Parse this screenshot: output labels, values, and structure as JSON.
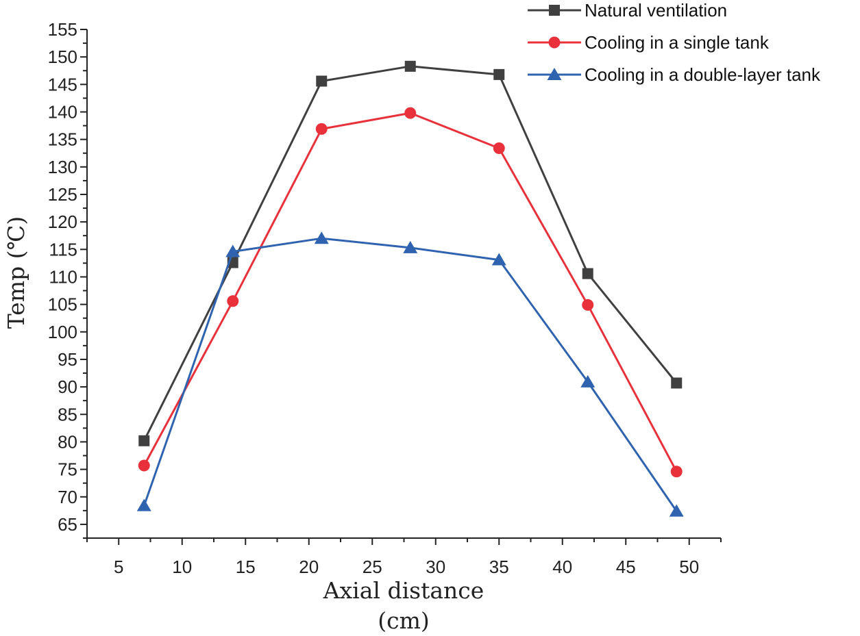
{
  "chart_data": {
    "type": "line",
    "title": "",
    "xlabel": "Axial distance",
    "xlabel_unit": "(cm)",
    "ylabel": "Temp (℃)",
    "xlim": [
      2.5,
      52.5
    ],
    "ylim": [
      62.5,
      155
    ],
    "xticks": [
      5,
      10,
      15,
      20,
      25,
      30,
      35,
      40,
      45,
      50
    ],
    "yticks": [
      65,
      70,
      75,
      80,
      85,
      90,
      95,
      100,
      105,
      110,
      115,
      120,
      125,
      130,
      135,
      140,
      145,
      150,
      155
    ],
    "x": [
      7,
      14,
      21,
      28,
      35,
      42,
      49
    ],
    "grid": false,
    "legend_position": "top-right",
    "series": [
      {
        "name": "Natural ventilation",
        "marker": "square",
        "color": "#404040",
        "values": [
          80.2,
          112.6,
          145.6,
          148.3,
          146.8,
          110.6,
          90.7
        ]
      },
      {
        "name": "Cooling in a single tank",
        "marker": "circle",
        "color": "#e8313a",
        "values": [
          75.7,
          105.6,
          136.9,
          139.8,
          133.4,
          104.9,
          74.6
        ]
      },
      {
        "name": "Cooling in a double-layer tank",
        "marker": "triangle",
        "color": "#2f63b0",
        "values": [
          68.4,
          114.6,
          117.0,
          115.3,
          113.1,
          90.9,
          67.4
        ]
      }
    ]
  }
}
